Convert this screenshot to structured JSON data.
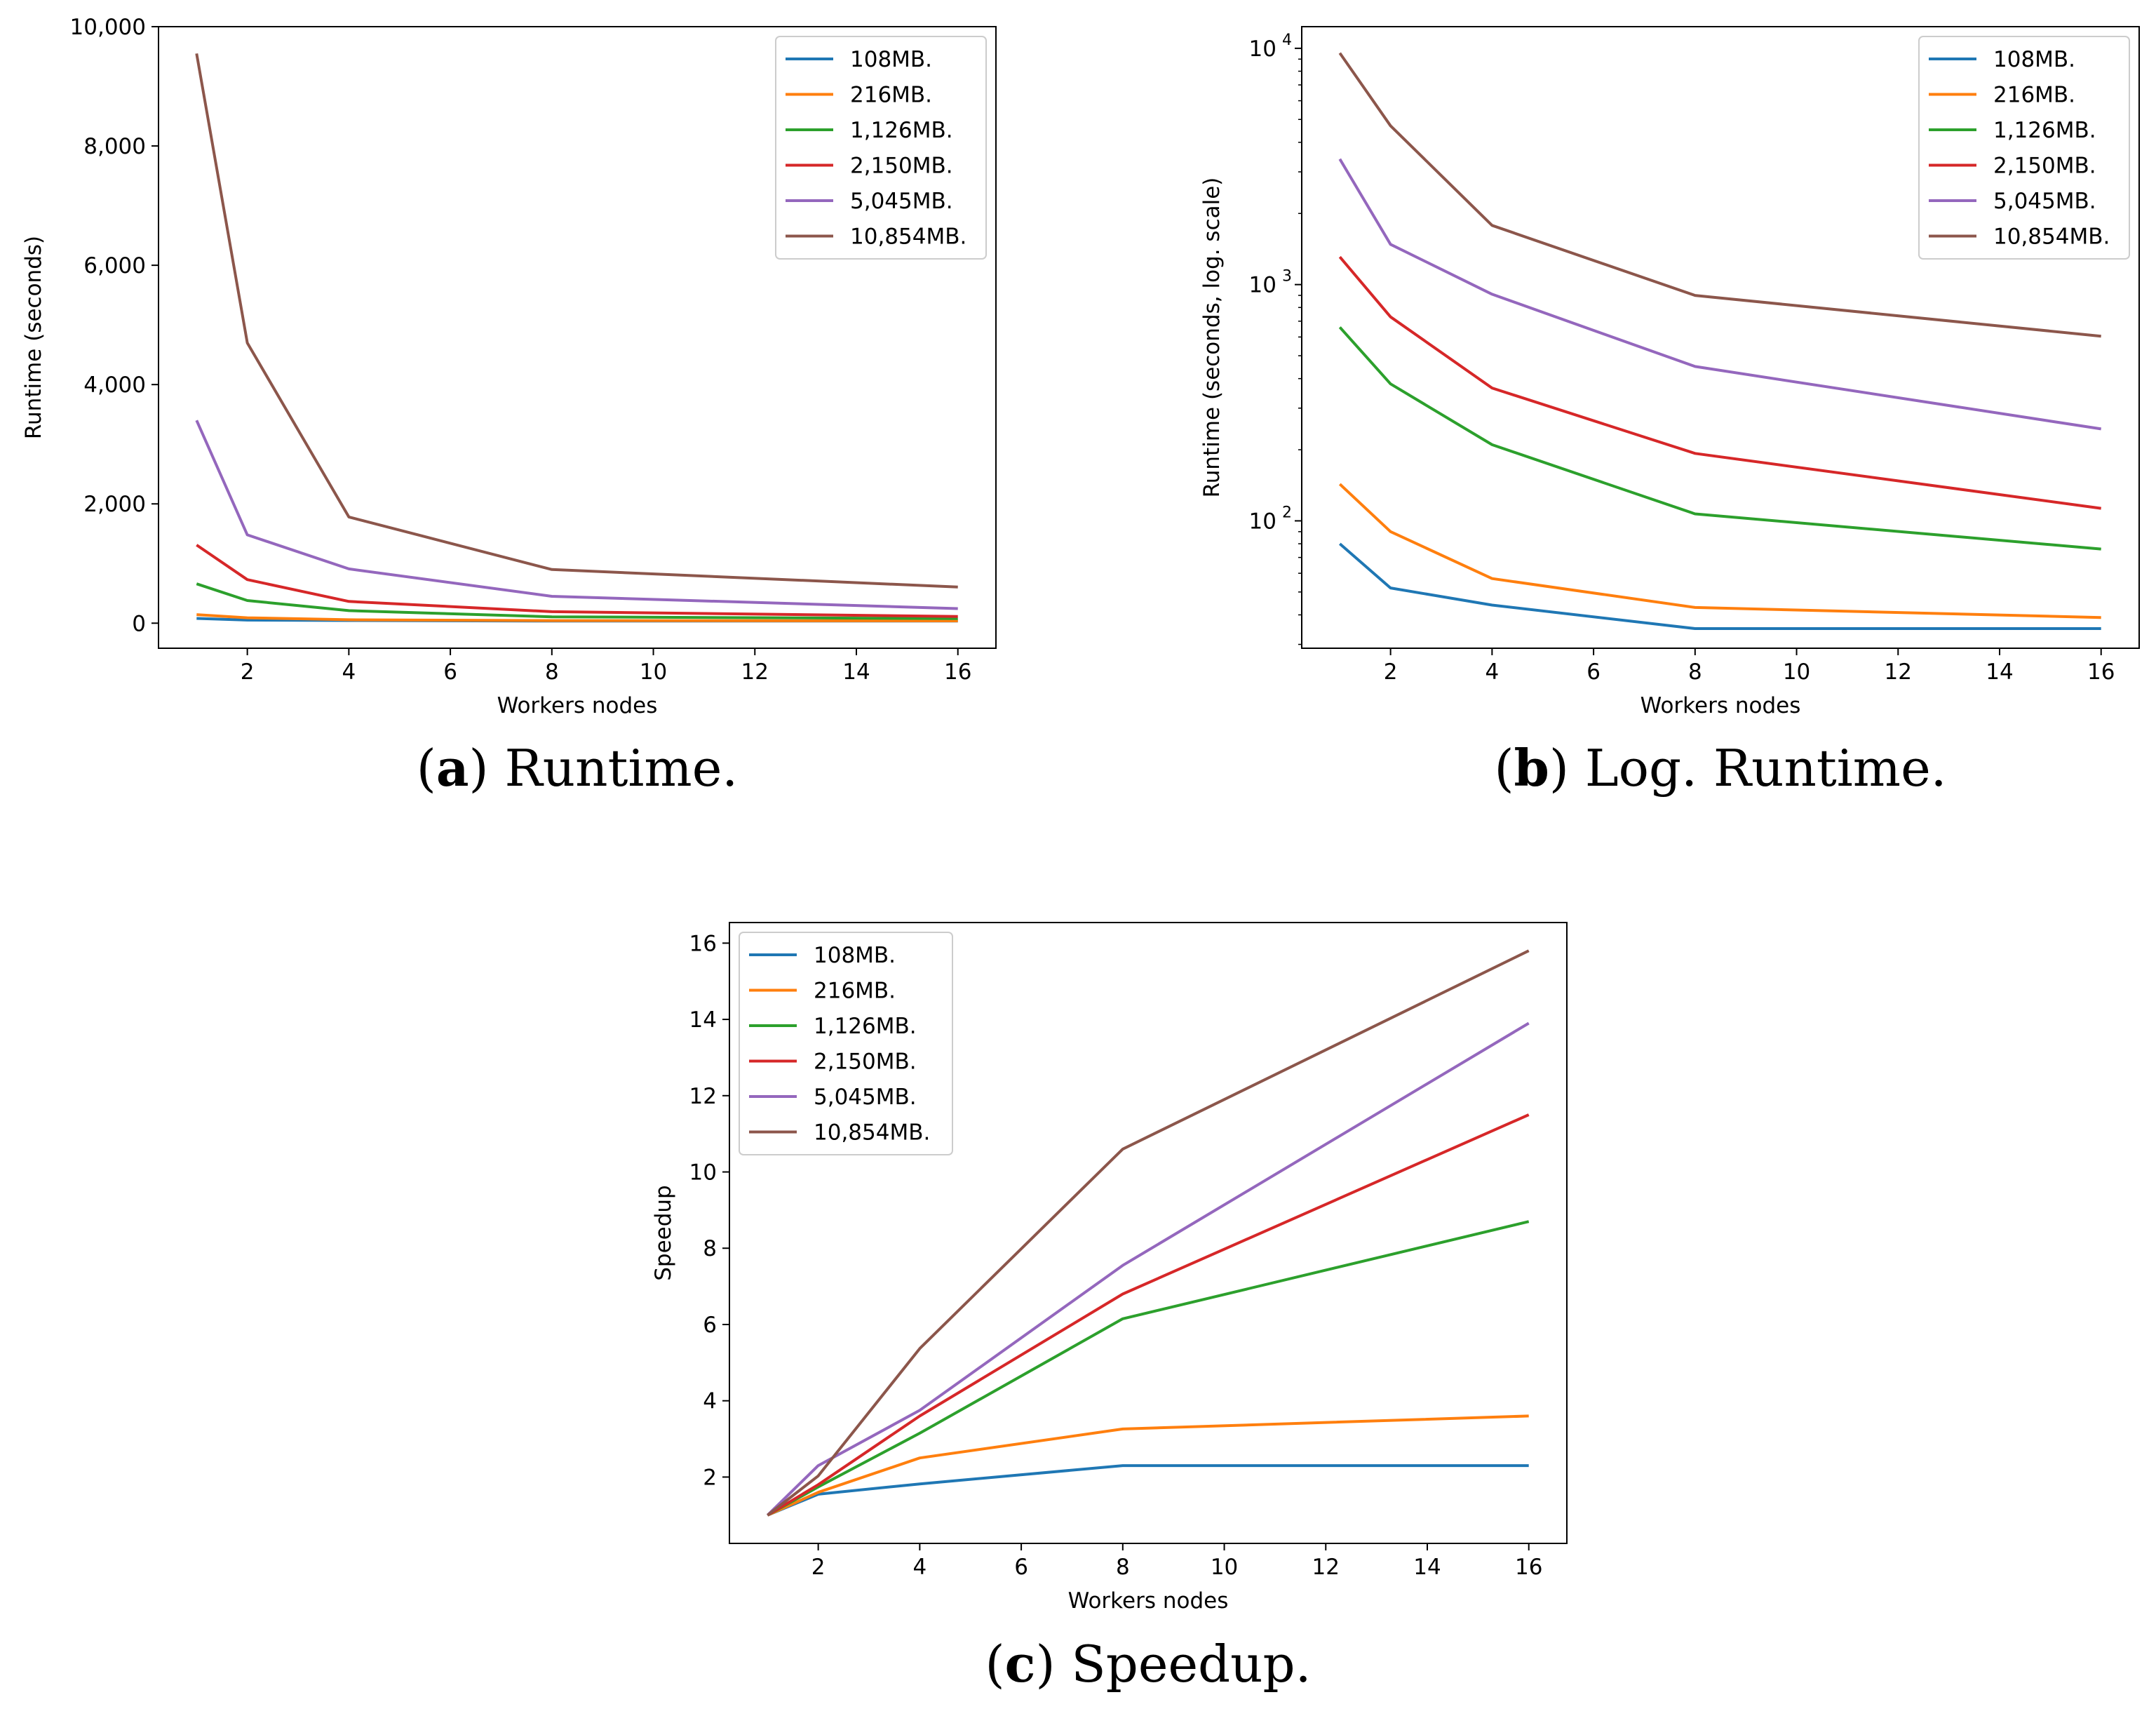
{
  "series_styles": [
    {
      "name": "108MB.",
      "color": "#1f77b4"
    },
    {
      "name": "216MB.",
      "color": "#ff7f0e"
    },
    {
      "name": "1,126MB.",
      "color": "#2ca02c"
    },
    {
      "name": "2,150MB.",
      "color": "#d62728"
    },
    {
      "name": "5,045MB.",
      "color": "#9467bd"
    },
    {
      "name": "10,854MB.",
      "color": "#8c564b"
    }
  ],
  "chart_data": [
    {
      "id": "a",
      "type": "line",
      "title": "",
      "caption_letter": "a",
      "caption_text": " Runtime.",
      "xlabel": "Workers nodes",
      "ylabel": "Runtime (seconds)",
      "yscale": "linear",
      "xlim": [
        0.25,
        16.75
      ],
      "ylim": [
        -420,
        10000
      ],
      "xticks": [
        2,
        4,
        6,
        8,
        10,
        12,
        14,
        16
      ],
      "yticks": [
        0,
        2000,
        4000,
        6000,
        8000,
        10000
      ],
      "ytick_labels": [
        "0",
        "2,000",
        "4,000",
        "6,000",
        "8,000",
        "10,000"
      ],
      "legend_position": "top-right",
      "x": [
        1,
        2,
        4,
        8,
        16
      ],
      "series": [
        {
          "name": "108MB.",
          "values": [
            80,
            52,
            44,
            35,
            35
          ]
        },
        {
          "name": "216MB.",
          "values": [
            143,
            90,
            57,
            43,
            39
          ]
        },
        {
          "name": "1,126MB.",
          "values": [
            660,
            380,
            210,
            107,
            76
          ]
        },
        {
          "name": "2,150MB.",
          "values": [
            1310,
            730,
            365,
            193,
            113
          ]
        },
        {
          "name": "5,045MB.",
          "values": [
            3400,
            1480,
            910,
            450,
            245
          ]
        },
        {
          "name": "10,854MB.",
          "values": [
            9550,
            4700,
            1780,
            900,
            605
          ]
        }
      ]
    },
    {
      "id": "b",
      "type": "line",
      "title": "",
      "caption_letter": "b",
      "caption_text": " Log. Runtime.",
      "xlabel": "Workers nodes",
      "ylabel": "Runtime (seconds, log. scale)",
      "yscale": "log",
      "xlim": [
        0.25,
        16.75
      ],
      "ylim": [
        28.9,
        12350
      ],
      "xticks": [
        2,
        4,
        6,
        8,
        10,
        12,
        14,
        16
      ],
      "yticks": [
        100,
        1000,
        10000
      ],
      "ytick_labels": [
        "10",
        "10",
        "10"
      ],
      "ytick_exponents": [
        "2",
        "3",
        "4"
      ],
      "legend_position": "top-right",
      "x": [
        1,
        2,
        4,
        8,
        16
      ],
      "series": [
        {
          "name": "108MB.",
          "values": [
            80,
            52,
            44,
            35,
            35
          ]
        },
        {
          "name": "216MB.",
          "values": [
            143,
            90,
            57,
            43,
            39
          ]
        },
        {
          "name": "1,126MB.",
          "values": [
            660,
            380,
            210,
            107,
            76
          ]
        },
        {
          "name": "2,150MB.",
          "values": [
            1310,
            730,
            365,
            193,
            113
          ]
        },
        {
          "name": "5,045MB.",
          "values": [
            3400,
            1480,
            910,
            450,
            245
          ]
        },
        {
          "name": "10,854MB.",
          "values": [
            9550,
            4700,
            1780,
            900,
            605
          ]
        }
      ]
    },
    {
      "id": "c",
      "type": "line",
      "title": "",
      "caption_letter": "c",
      "caption_text": " Speedup.",
      "xlabel": "Workers nodes",
      "ylabel": "Speedup",
      "yscale": "linear",
      "xlim": [
        0.25,
        16.75
      ],
      "ylim": [
        0.26,
        16.54
      ],
      "xticks": [
        2,
        4,
        6,
        8,
        10,
        12,
        14,
        16
      ],
      "yticks": [
        2,
        4,
        6,
        8,
        10,
        12,
        14,
        16
      ],
      "ytick_labels": [
        "2",
        "4",
        "6",
        "8",
        "10",
        "12",
        "14",
        "16"
      ],
      "legend_position": "top-left",
      "x": [
        1,
        2,
        4,
        8,
        16
      ],
      "series": [
        {
          "name": "108MB.",
          "values": [
            1,
            1.55,
            1.82,
            2.3,
            2.3
          ]
        },
        {
          "name": "216MB.",
          "values": [
            1,
            1.6,
            2.5,
            3.26,
            3.6
          ]
        },
        {
          "name": "1,126MB.",
          "values": [
            1,
            1.74,
            3.15,
            6.15,
            8.7
          ]
        },
        {
          "name": "2,150MB.",
          "values": [
            1,
            1.8,
            3.6,
            6.8,
            11.5
          ]
        },
        {
          "name": "5,045MB.",
          "values": [
            1,
            2.3,
            3.75,
            7.55,
            13.9
          ]
        },
        {
          "name": "10,854MB.",
          "values": [
            1,
            2.03,
            5.37,
            10.6,
            15.8
          ]
        }
      ]
    }
  ]
}
